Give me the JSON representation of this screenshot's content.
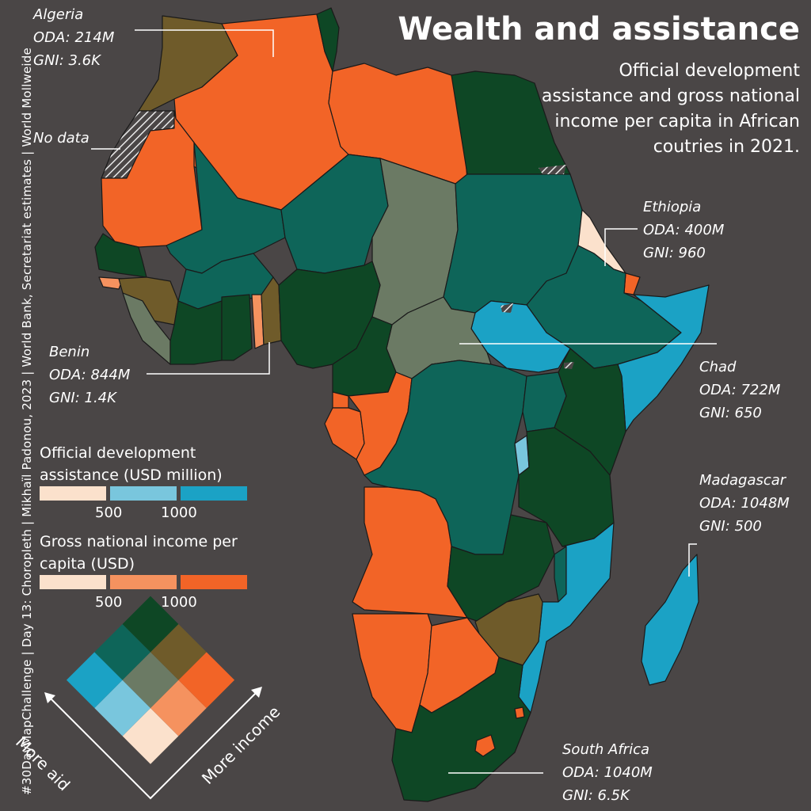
{
  "title": "Wealth and assistance",
  "subtitle": "Official development assistance and gross national income per capita in African coutries in 2021.",
  "credit": "#30DayMapChallenge | Day 13: Choropleth | Mikhaïl Padonou, 2023 | World Bank, Secretariat estimates | World Mollweide",
  "colors": {
    "background": "#4a4646",
    "low_aid_low_income": "#fbe1cc",
    "mid_aid_low_income": "#79c6dd",
    "high_aid_low_income": "#1ba2c5",
    "low_aid_mid_income": "#f5925f",
    "mid_aid_mid_income": "#6b7a64",
    "high_aid_mid_income": "#0e6559",
    "low_aid_high_income": "#f26427",
    "mid_aid_high_income": "#6f5b2a",
    "high_aid_high_income": "#0e4725",
    "no_data": "hatched"
  },
  "callouts": {
    "algeria": {
      "name": "Algeria",
      "oda": "ODA: 214M",
      "gni": "GNI: 3.6K"
    },
    "no_data": {
      "label": "No data"
    },
    "ethiopia": {
      "name": "Ethiopia",
      "oda": "ODA: 400M",
      "gni": "GNI: 960"
    },
    "benin": {
      "name": "Benin",
      "oda": "ODA: 844M",
      "gni": "GNI: 1.4K"
    },
    "chad": {
      "name": "Chad",
      "oda": "ODA: 722M",
      "gni": "GNI: 650"
    },
    "madagascar": {
      "name": "Madagascar",
      "oda": "ODA: 1048M",
      "gni": "GNI: 500"
    },
    "south_africa": {
      "name": "South Africa",
      "oda": "ODA: 1040M",
      "gni": "GNI: 6.5K"
    }
  },
  "legend": {
    "oda_title": "Official development assistance (USD million)",
    "gni_title": "Gross national income per capita (USD)",
    "oda_ticks": [
      "500",
      "1000"
    ],
    "gni_ticks": [
      "500",
      "1000"
    ],
    "more_aid": "More aid",
    "more_income": "More income"
  }
}
